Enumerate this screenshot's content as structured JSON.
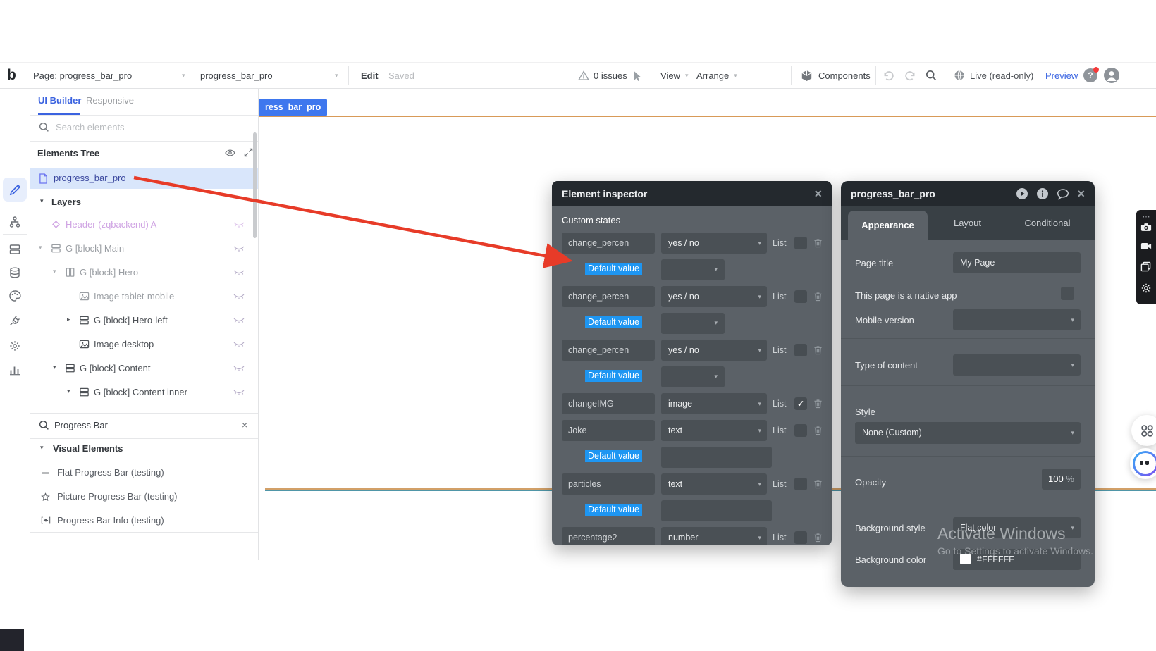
{
  "toolbar": {
    "logo": "b",
    "page_selector": "Page: progress_bar_pro",
    "element_selector": "progress_bar_pro",
    "edit": "Edit",
    "saved": "Saved",
    "issues": "0 issues",
    "view": "View",
    "arrange": "Arrange",
    "components": "Components",
    "live": "Live (read-only)",
    "preview": "Preview"
  },
  "panel_tabs": {
    "ui_builder": "UI Builder",
    "responsive": "Responsive"
  },
  "element_search_top": {
    "placeholder": "Search elements"
  },
  "elements_tree": {
    "title": "Elements Tree",
    "page_item": "progress_bar_pro",
    "layers": "Layers",
    "items": [
      {
        "label": "Header (zqbackend) A",
        "level": 1,
        "caret": "",
        "icon": "diamond",
        "tone": "purple"
      },
      {
        "label": "G [block] Main",
        "level": 1,
        "caret": "down",
        "icon": "rows",
        "tone": "muted"
      },
      {
        "label": "G [block] Hero",
        "level": 2,
        "caret": "down",
        "icon": "columns",
        "tone": "muted"
      },
      {
        "label": "Image tablet-mobile",
        "level": 3,
        "caret": "",
        "icon": "image",
        "tone": "muted"
      },
      {
        "label": "G [block] Hero-left",
        "level": 3,
        "caret": "right",
        "icon": "rows",
        "tone": "dark"
      },
      {
        "label": "Image desktop",
        "level": 3,
        "caret": "",
        "icon": "image",
        "tone": "dark"
      },
      {
        "label": "G [block] Content",
        "level": 2,
        "caret": "down",
        "icon": "rows",
        "tone": "dark"
      },
      {
        "label": "G [block] Content inner",
        "level": 3,
        "caret": "down",
        "icon": "rows",
        "tone": "dark"
      }
    ]
  },
  "element_picker": {
    "query": "Progress Bar",
    "section": "Visual Elements",
    "results": [
      {
        "label": "Flat Progress Bar (testing)",
        "icon": "dash"
      },
      {
        "label": "Picture Progress Bar (testing)",
        "icon": "star"
      },
      {
        "label": "Progress Bar Info (testing)",
        "icon": "info"
      }
    ]
  },
  "canvas": {
    "page_chip": "ress_bar_pro"
  },
  "element_inspector": {
    "title": "Element inspector",
    "section": "Custom states",
    "list_label": "List",
    "default_value_label": "Default value",
    "rows": [
      {
        "name": "change_percen",
        "type": "yes / no",
        "list_checked": false,
        "default": "dropdown"
      },
      {
        "name": "change_percen",
        "type": "yes / no",
        "list_checked": false,
        "default": "dropdown"
      },
      {
        "name": "change_percen",
        "type": "yes / no",
        "list_checked": false,
        "default": "dropdown"
      },
      {
        "name": "changeIMG",
        "type": "image",
        "list_checked": true,
        "default": "none"
      },
      {
        "name": "Joke",
        "type": "text",
        "list_checked": false,
        "default": "input"
      },
      {
        "name": "particles",
        "type": "text",
        "list_checked": false,
        "default": "input"
      },
      {
        "name": "percentage2",
        "type": "number",
        "list_checked": false,
        "default": "none"
      }
    ]
  },
  "page_inspector": {
    "title": "progress_bar_pro",
    "tabs": [
      "Appearance",
      "Layout",
      "Conditional"
    ],
    "active_tab": "Appearance",
    "page_title_label": "Page title",
    "page_title_value": "My Page",
    "native_app_label": "This page is a native app",
    "mobile_version_label": "Mobile version",
    "type_of_content_label": "Type of content",
    "style_label": "Style",
    "style_value": "None (Custom)",
    "opacity_label": "Opacity",
    "opacity_value": "100",
    "opacity_unit": "%",
    "background_style_label": "Background style",
    "background_style_value": "Flat color",
    "background_color_label": "Background color",
    "background_color_value": "#FFFFFF"
  },
  "watermark": {
    "line1": "Activate Windows",
    "line2": "Go to Settings to activate Windows."
  },
  "glyphs": {
    "caret_down": "▾",
    "caret_right": "▸",
    "close": "×",
    "check": "✓",
    "ellipsis": "⋯",
    "question": "?"
  },
  "colors": {
    "accent_blue": "#3b63e0",
    "selection_blue": "#1e96f2",
    "panel_body": "#5b6167",
    "panel_header": "#24292e",
    "chip_blue": "#3e77ee",
    "arrow_red": "#e73b28",
    "boundary_orange": "#d2a068",
    "boundary_teal": "#4f96a8",
    "tree_selected_bg": "#d9e6fb",
    "background_color_swatch": "#FFFFFF"
  }
}
